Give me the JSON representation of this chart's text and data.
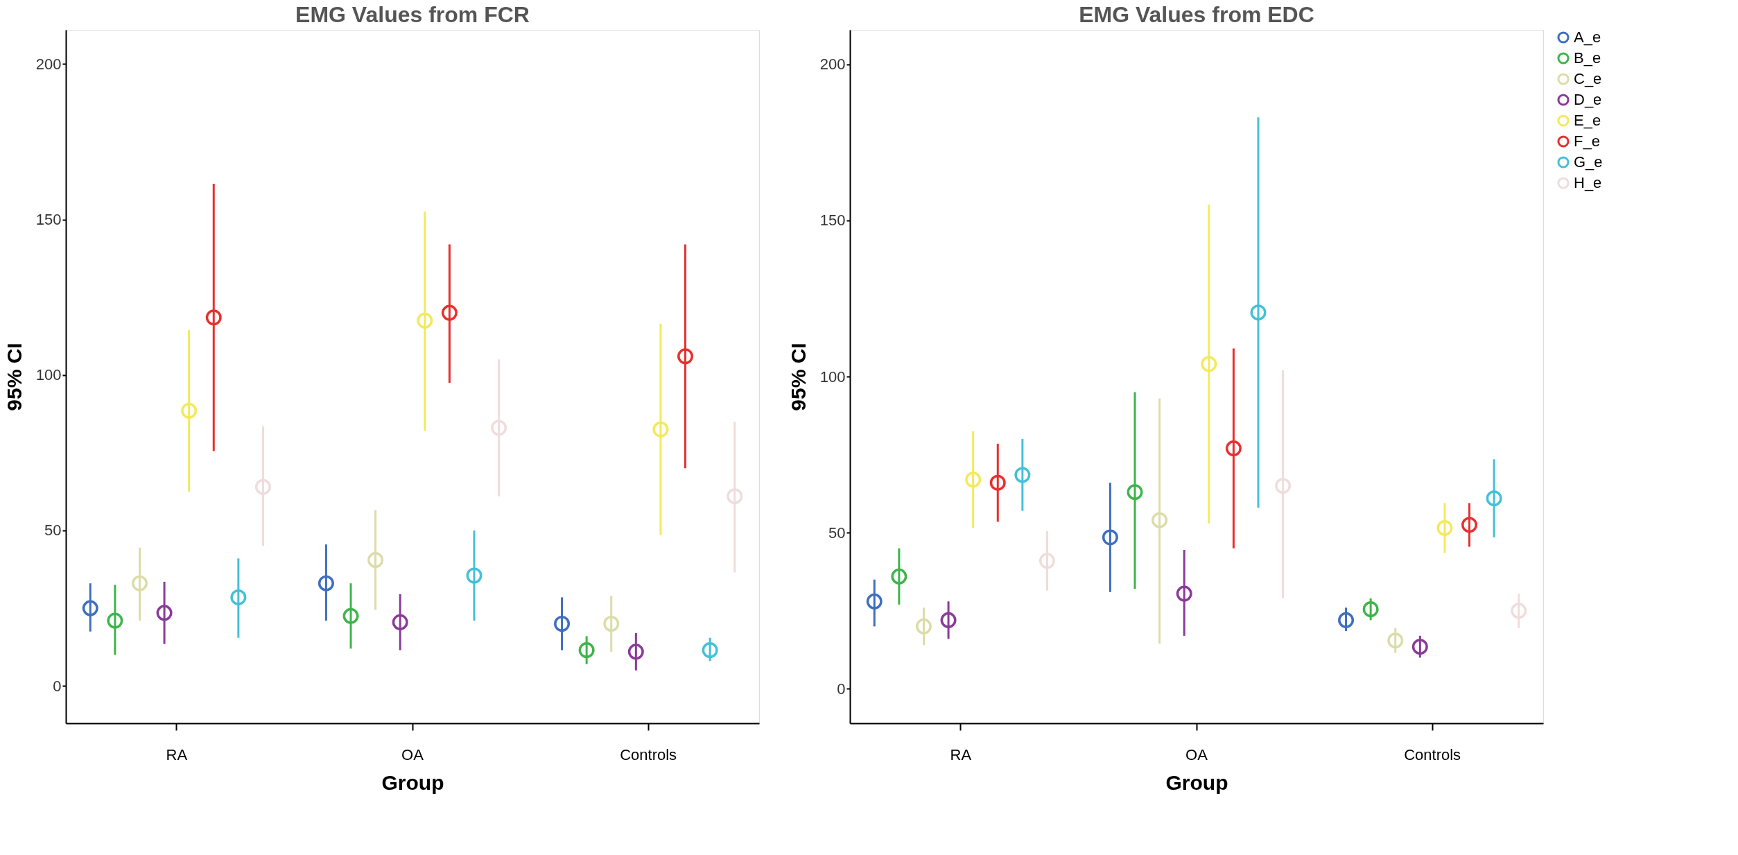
{
  "chart_data": [
    {
      "type": "scatter",
      "title": "EMG Values from FCR",
      "xlabel": "Group",
      "ylabel": "95% CI",
      "categories": [
        "RA",
        "OA",
        "Controls"
      ],
      "ylim": [
        -12,
        211
      ],
      "yticks": [
        0,
        50,
        100,
        150,
        200
      ],
      "grid": false,
      "legend": false,
      "marker": "circle",
      "series": [
        {
          "color": "#3e6fc0",
          "values": [
            25,
            33,
            20
          ],
          "errors": [
            [
              17.5,
              33
            ],
            [
              21,
              45.5
            ],
            [
              11.5,
              28.5
            ]
          ]
        },
        {
          "color": "#3db54a",
          "values": [
            21,
            22.5,
            11.5
          ],
          "errors": [
            [
              10,
              32.5
            ],
            [
              12,
              33
            ],
            [
              7,
              16
            ]
          ]
        },
        {
          "color": "#dcdcaa",
          "values": [
            33,
            40.5,
            20
          ],
          "errors": [
            [
              21,
              44.5
            ],
            [
              24.5,
              56.5
            ],
            [
              11,
              29
            ]
          ]
        },
        {
          "color": "#8b3a9a",
          "values": [
            23.5,
            20.5,
            11
          ],
          "errors": [
            [
              13.5,
              33.5
            ],
            [
              11.5,
              29.5
            ],
            [
              5,
              17
            ]
          ]
        },
        {
          "color": "#f2ea5a",
          "values": [
            88.5,
            117.5,
            82.5
          ],
          "errors": [
            [
              62.5,
              114.5
            ],
            [
              82,
              152.5
            ],
            [
              48.5,
              116.5
            ]
          ]
        },
        {
          "color": "#e8302e",
          "values": [
            118.5,
            120,
            106
          ],
          "errors": [
            [
              75.5,
              161.5
            ],
            [
              97.5,
              142
            ],
            [
              70,
              142
            ]
          ]
        },
        {
          "color": "#44c0d8",
          "values": [
            28.5,
            35.5,
            11.5
          ],
          "errors": [
            [
              15.5,
              41
            ],
            [
              21,
              50
            ],
            [
              8,
              15.5
            ]
          ]
        },
        {
          "color": "#f0dcdc",
          "values": [
            64,
            83,
            61
          ],
          "errors": [
            [
              45,
              83.5
            ],
            [
              61,
              105
            ],
            [
              36.5,
              85
            ]
          ]
        }
      ]
    },
    {
      "type": "scatter",
      "title": "EMG Values from EDC",
      "xlabel": "Group",
      "ylabel": "95% CI",
      "categories": [
        "RA",
        "OA",
        "Controls"
      ],
      "ylim": [
        -11,
        211
      ],
      "yticks": [
        0,
        50,
        100,
        150,
        200
      ],
      "grid": false,
      "legend": "top right",
      "marker": "circle",
      "series": [
        {
          "name": "A_e",
          "color": "#3e6fc0",
          "values": [
            28,
            48.5,
            22
          ],
          "errors": [
            [
              20,
              35
            ],
            [
              31,
              66
            ],
            [
              18.5,
              26
            ]
          ]
        },
        {
          "name": "B_e",
          "color": "#3db54a",
          "values": [
            36,
            63,
            25.5
          ],
          "errors": [
            [
              27,
              45
            ],
            [
              32,
              95
            ],
            [
              22,
              29
            ]
          ]
        },
        {
          "name": "C_e",
          "color": "#dcdcaa",
          "values": [
            20,
            54,
            15.5
          ],
          "errors": [
            [
              14,
              26
            ],
            [
              14.5,
              93
            ],
            [
              11.5,
              19.5
            ]
          ]
        },
        {
          "name": "D_e",
          "color": "#8b3a9a",
          "values": [
            22,
            30.5,
            13.5
          ],
          "errors": [
            [
              16,
              28
            ],
            [
              17,
              44.5
            ],
            [
              10,
              17
            ]
          ]
        },
        {
          "name": "E_e",
          "color": "#f2ea5a",
          "values": [
            67,
            104,
            51.5
          ],
          "errors": [
            [
              51.5,
              82.5
            ],
            [
              53,
              155
            ],
            [
              43.5,
              59.5
            ]
          ]
        },
        {
          "name": "F_e",
          "color": "#e8302e",
          "values": [
            66,
            77,
            52.5
          ],
          "errors": [
            [
              53.5,
              78.5
            ],
            [
              45,
              109
            ],
            [
              45.5,
              59.5
            ]
          ]
        },
        {
          "name": "G_e",
          "color": "#44c0d8",
          "values": [
            68.5,
            120.5,
            61
          ],
          "errors": [
            [
              57,
              80
            ],
            [
              58,
              183
            ],
            [
              48.5,
              73.5
            ]
          ]
        },
        {
          "name": "H_e",
          "color": "#f0dcdc",
          "values": [
            41,
            65,
            25
          ],
          "errors": [
            [
              31.5,
              50.5
            ],
            [
              29,
              102
            ],
            [
              19.5,
              30.5
            ]
          ]
        }
      ]
    }
  ]
}
